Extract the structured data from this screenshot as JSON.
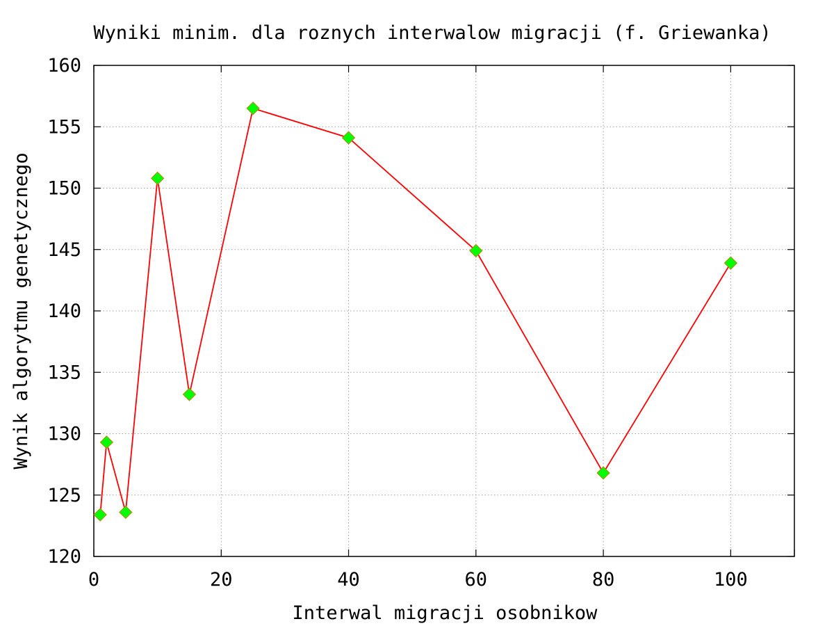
{
  "chart_data": {
    "type": "line",
    "title": "Wyniki minim. dla roznych interwalow migracji (f. Griewanka)",
    "xlabel": "Interwal migracji osobnikow",
    "ylabel": "Wynik algorytmu genetycznego",
    "xlim": [
      0,
      110
    ],
    "ylim": [
      120,
      160
    ],
    "xticks": [
      0,
      20,
      40,
      60,
      80,
      100
    ],
    "yticks": [
      120,
      125,
      130,
      135,
      140,
      145,
      150,
      155,
      160
    ],
    "grid": true,
    "legend": "none",
    "series": [
      {
        "x": [
          1,
          2,
          5,
          10,
          15,
          25,
          40,
          60,
          80,
          100
        ],
        "y": [
          123.4,
          129.3,
          123.6,
          150.8,
          133.2,
          156.5,
          154.1,
          144.9,
          126.8,
          143.9
        ],
        "line_color": "#ff0000",
        "marker": "diamond",
        "marker_fill": "#00ff00",
        "marker_edge": "#b8860b"
      }
    ]
  }
}
